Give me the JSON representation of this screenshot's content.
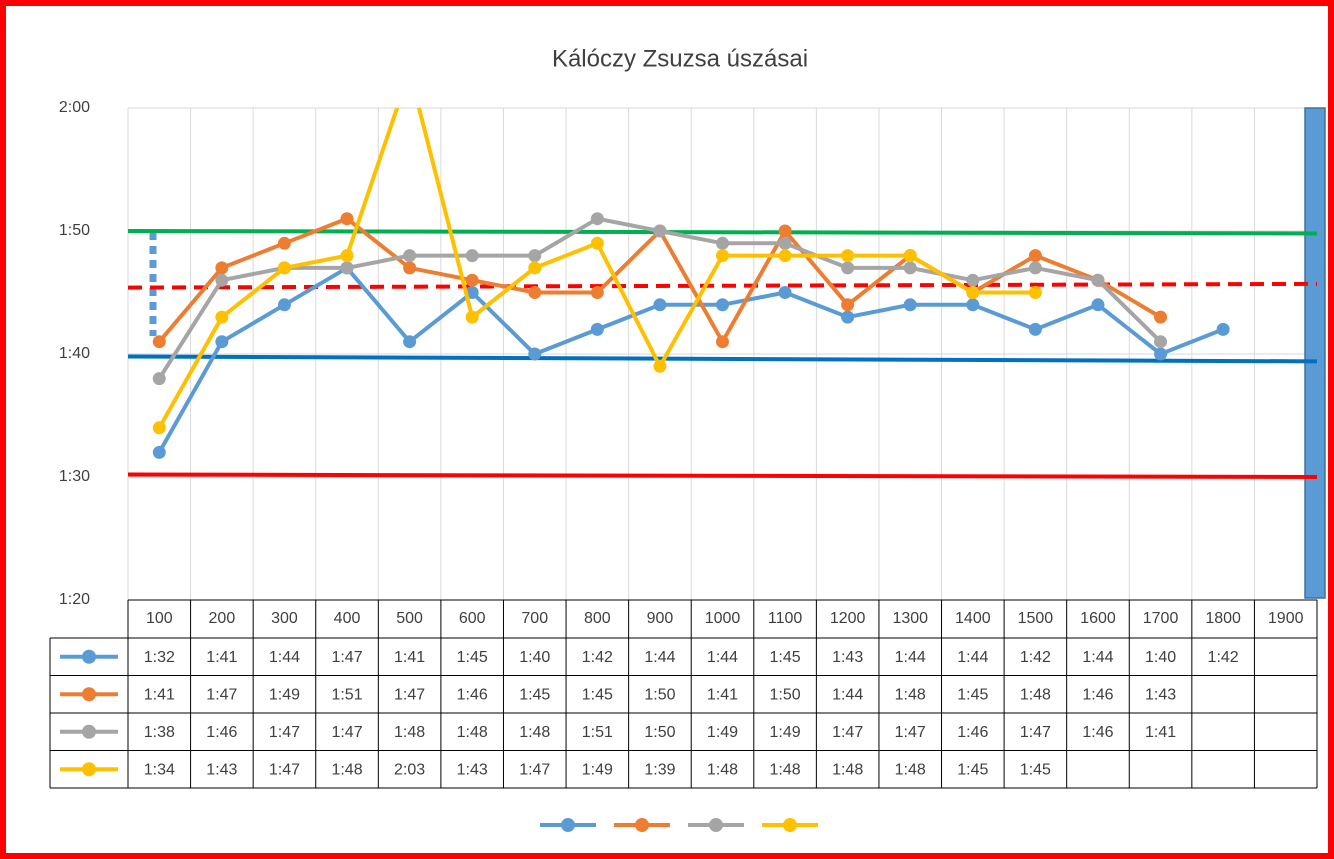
{
  "chart_data": {
    "type": "line",
    "title": "Kálóczy Zsuzsa úszásai",
    "categories": [
      "100",
      "200",
      "300",
      "400",
      "500",
      "600",
      "700",
      "800",
      "900",
      "1000",
      "1100",
      "1200",
      "1300",
      "1400",
      "1500",
      "1600",
      "1700",
      "1800",
      "1900"
    ],
    "ylim": [
      80,
      120
    ],
    "yticks": [
      {
        "value": 80,
        "label": "1:20"
      },
      {
        "value": 90,
        "label": "1:30"
      },
      {
        "value": 100,
        "label": "1:40"
      },
      {
        "value": 110,
        "label": "1:50"
      },
      {
        "value": 120,
        "label": "2:00"
      }
    ],
    "grid": true,
    "series": [
      {
        "color": "#5b9bd5",
        "values": [
          92,
          101,
          104,
          107,
          101,
          105,
          100,
          102,
          104,
          104,
          105,
          103,
          104,
          104,
          102,
          104,
          100,
          102,
          null
        ],
        "value_labels": [
          "1:32",
          "1:41",
          "1:44",
          "1:47",
          "1:41",
          "1:45",
          "1:40",
          "1:42",
          "1:44",
          "1:44",
          "1:45",
          "1:43",
          "1:44",
          "1:44",
          "1:42",
          "1:44",
          "1:40",
          "1:42",
          null
        ]
      },
      {
        "color": "#ed7d31",
        "values": [
          101,
          107,
          109,
          111,
          107,
          106,
          105,
          105,
          110,
          101,
          110,
          104,
          108,
          105,
          108,
          106,
          103,
          null,
          null
        ],
        "value_labels": [
          "1:41",
          "1:47",
          "1:49",
          "1:51",
          "1:47",
          "1:46",
          "1:45",
          "1:45",
          "1:50",
          "1:41",
          "1:50",
          "1:44",
          "1:48",
          "1:45",
          "1:48",
          "1:46",
          "1:43",
          null,
          null
        ]
      },
      {
        "color": "#a5a5a5",
        "values": [
          98,
          106,
          107,
          107,
          108,
          108,
          108,
          111,
          110,
          109,
          109,
          107,
          107,
          106,
          107,
          106,
          101,
          null,
          null
        ],
        "value_labels": [
          "1:38",
          "1:46",
          "1:47",
          "1:47",
          "1:48",
          "1:48",
          "1:48",
          "1:51",
          "1:50",
          "1:49",
          "1:49",
          "1:47",
          "1:47",
          "1:46",
          "1:47",
          "1:46",
          "1:41",
          null,
          null
        ]
      },
      {
        "color": "#ffc000",
        "values": [
          94,
          103,
          107,
          108,
          123,
          103,
          107,
          109,
          99,
          108,
          108,
          108,
          108,
          105,
          105,
          null,
          null,
          null,
          null
        ],
        "value_labels": [
          "1:34",
          "1:43",
          "1:47",
          "1:48",
          "2:03",
          "1:43",
          "1:47",
          "1:49",
          "1:39",
          "1:48",
          "1:48",
          "1:48",
          "1:48",
          "1:45",
          "1:45",
          null,
          null,
          null,
          null
        ]
      }
    ],
    "reference_lines": [
      {
        "color": "#00b050",
        "values": [
          110,
          109.8
        ]
      },
      {
        "color": "#0070c0",
        "values": [
          99.8,
          99.4
        ]
      },
      {
        "color": "#ff0000",
        "values": [
          90.2,
          90
        ]
      },
      {
        "color": "#ff0000",
        "dashed": true,
        "values": [
          105.4,
          105.7
        ]
      }
    ]
  }
}
